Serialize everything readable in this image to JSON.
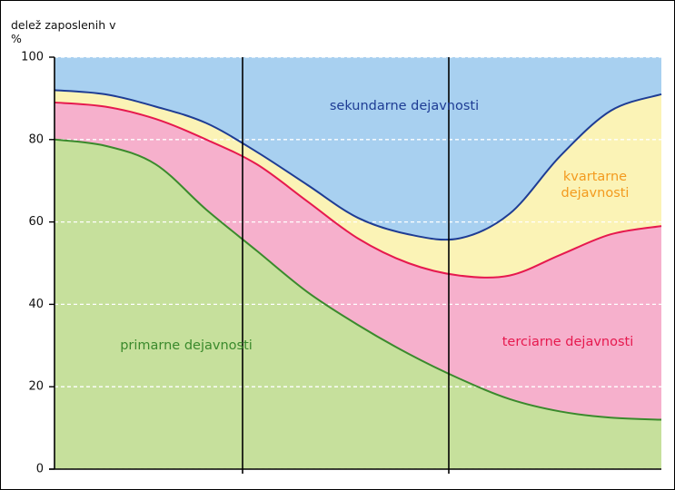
{
  "chart_data": {
    "type": "stacked_area",
    "y_label": "delež zaposlenih v %",
    "categories": [
      null,
      null,
      null,
      null,
      null,
      null,
      null,
      null,
      null,
      null,
      null,
      null,
      null
    ],
    "ylim": [
      0,
      100
    ],
    "yticks": [
      0,
      20,
      40,
      60,
      80,
      100
    ],
    "grid": true,
    "series": [
      {
        "name": "primarne dejavnosti",
        "color": "#c6e09c",
        "line_color": "#3a8a2c",
        "label_color": "#3a8a2c",
        "values": [
          80,
          78.5,
          74,
          63,
          53,
          43,
          35,
          28,
          22,
          17,
          14,
          12.5,
          12
        ]
      },
      {
        "name": "terciarne dejavnosti",
        "color": "#f6b0cc",
        "line_color": "#e6194e",
        "label_color": "#e6194e",
        "values": [
          9,
          9.5,
          11,
          17,
          21,
          22,
          21,
          22,
          25,
          30,
          38,
          44.5,
          47
        ]
      },
      {
        "name": "kvartarne dejavnosti",
        "color": "#fbf3b6",
        "line_color": "#1e3c94",
        "label_color": "#f39a1e",
        "values": [
          3,
          3,
          3,
          4,
          3,
          4,
          5,
          7,
          9,
          15,
          24,
          30,
          32
        ]
      },
      {
        "name": "sekundarne dejavnosti",
        "color": "#a8d0f0",
        "label_color": "#1e3c94",
        "values": [
          8,
          9,
          12,
          16,
          23,
          31,
          39,
          43,
          44,
          38,
          24,
          13,
          9
        ]
      }
    ]
  }
}
